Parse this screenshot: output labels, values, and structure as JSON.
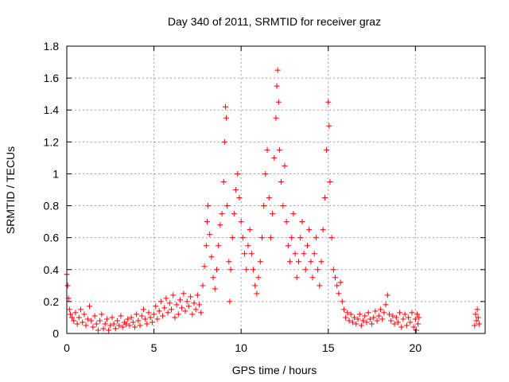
{
  "chart_data": {
    "type": "scatter",
    "title": "Day 340 of 2011, SRMTID for receiver graz",
    "xlabel": "GPS time / hours",
    "ylabel": "SRMTID / TECUs",
    "xlim": [
      0,
      24
    ],
    "ylim": [
      0,
      1.8
    ],
    "xticks": [
      0,
      5,
      10,
      15,
      20
    ],
    "xtick_labels": [
      "0",
      "5",
      "10",
      "15",
      "20"
    ],
    "yticks": [
      0,
      0.2,
      0.4,
      0.6,
      0.8,
      1,
      1.2,
      1.4,
      1.6,
      1.8
    ],
    "ytick_labels": [
      "0",
      "0.2",
      "0.4",
      "0.6",
      "0.8",
      "1",
      "1.2",
      "1.4",
      "1.6",
      "1.8"
    ],
    "grid": true,
    "marker": "+",
    "color": "#ff0000",
    "series": [
      {
        "name": "SRMTID",
        "points": [
          [
            0.0,
            0.37
          ],
          [
            0.05,
            0.3
          ],
          [
            0.1,
            0.22
          ],
          [
            0.15,
            0.15
          ],
          [
            0.2,
            0.12
          ],
          [
            0.3,
            0.1
          ],
          [
            0.4,
            0.08
          ],
          [
            0.5,
            0.13
          ],
          [
            0.6,
            0.06
          ],
          [
            0.7,
            0.1
          ],
          [
            0.8,
            0.15
          ],
          [
            0.9,
            0.07
          ],
          [
            1.0,
            0.12
          ],
          [
            1.1,
            0.05
          ],
          [
            1.2,
            0.09
          ],
          [
            1.3,
            0.17
          ],
          [
            1.4,
            0.08
          ],
          [
            1.5,
            0.04
          ],
          [
            1.6,
            0.11
          ],
          [
            1.7,
            0.06
          ],
          [
            1.8,
            0.02
          ],
          [
            1.9,
            0.08
          ],
          [
            2.0,
            0.12
          ],
          [
            2.1,
            0.03
          ],
          [
            2.2,
            0.06
          ],
          [
            2.3,
            0.09
          ],
          [
            2.4,
            0.02
          ],
          [
            2.5,
            0.05
          ],
          [
            2.6,
            0.1
          ],
          [
            2.7,
            0.06
          ],
          [
            2.8,
            0.03
          ],
          [
            2.9,
            0.08
          ],
          [
            3.0,
            0.05
          ],
          [
            3.1,
            0.11
          ],
          [
            3.2,
            0.04
          ],
          [
            3.3,
            0.07
          ],
          [
            3.4,
            0.06
          ],
          [
            3.5,
            0.09
          ],
          [
            3.6,
            0.05
          ],
          [
            3.7,
            0.1
          ],
          [
            3.8,
            0.07
          ],
          [
            3.9,
            0.04
          ],
          [
            4.0,
            0.12
          ],
          [
            4.1,
            0.08
          ],
          [
            4.2,
            0.05
          ],
          [
            4.3,
            0.11
          ],
          [
            4.4,
            0.15
          ],
          [
            4.5,
            0.09
          ],
          [
            4.6,
            0.06
          ],
          [
            4.7,
            0.13
          ],
          [
            4.8,
            0.1
          ],
          [
            4.9,
            0.07
          ],
          [
            5.0,
            0.12
          ],
          [
            5.1,
            0.17
          ],
          [
            5.2,
            0.09
          ],
          [
            5.3,
            0.14
          ],
          [
            5.4,
            0.2
          ],
          [
            5.5,
            0.11
          ],
          [
            5.6,
            0.16
          ],
          [
            5.7,
            0.22
          ],
          [
            5.8,
            0.13
          ],
          [
            5.9,
            0.19
          ],
          [
            6.0,
            0.15
          ],
          [
            6.1,
            0.24
          ],
          [
            6.2,
            0.1
          ],
          [
            6.3,
            0.18
          ],
          [
            6.4,
            0.12
          ],
          [
            6.5,
            0.21
          ],
          [
            6.6,
            0.16
          ],
          [
            6.7,
            0.25
          ],
          [
            6.8,
            0.14
          ],
          [
            6.9,
            0.2
          ],
          [
            7.0,
            0.17
          ],
          [
            7.1,
            0.23
          ],
          [
            7.2,
            0.12
          ],
          [
            7.3,
            0.19
          ],
          [
            7.4,
            0.15
          ],
          [
            7.5,
            0.24
          ],
          [
            7.6,
            0.18
          ],
          [
            7.7,
            0.13
          ],
          [
            7.8,
            0.3
          ],
          [
            7.9,
            0.42
          ],
          [
            8.0,
            0.55
          ],
          [
            8.05,
            0.7
          ],
          [
            8.1,
            0.8
          ],
          [
            8.2,
            0.62
          ],
          [
            8.3,
            0.48
          ],
          [
            8.4,
            0.35
          ],
          [
            8.5,
            0.28
          ],
          [
            8.6,
            0.4
          ],
          [
            8.7,
            0.55
          ],
          [
            8.8,
            0.68
          ],
          [
            8.9,
            0.75
          ],
          [
            9.0,
            0.95
          ],
          [
            9.05,
            1.2
          ],
          [
            9.1,
            1.42
          ],
          [
            9.15,
            1.35
          ],
          [
            9.2,
            0.8
          ],
          [
            9.3,
            0.45
          ],
          [
            9.35,
            0.2
          ],
          [
            9.4,
            0.4
          ],
          [
            9.5,
            0.6
          ],
          [
            9.6,
            0.75
          ],
          [
            9.7,
            0.9
          ],
          [
            9.8,
            1.0
          ],
          [
            9.9,
            0.85
          ],
          [
            10.0,
            0.7
          ],
          [
            10.1,
            0.6
          ],
          [
            10.2,
            0.5
          ],
          [
            10.3,
            0.4
          ],
          [
            10.4,
            0.55
          ],
          [
            10.5,
            0.65
          ],
          [
            10.6,
            0.5
          ],
          [
            10.7,
            0.4
          ],
          [
            10.8,
            0.3
          ],
          [
            10.9,
            0.25
          ],
          [
            11.0,
            0.35
          ],
          [
            11.1,
            0.45
          ],
          [
            11.2,
            0.6
          ],
          [
            11.3,
            0.8
          ],
          [
            11.4,
            1.0
          ],
          [
            11.5,
            1.15
          ],
          [
            11.6,
            0.85
          ],
          [
            11.7,
            0.6
          ],
          [
            11.8,
            0.75
          ],
          [
            11.9,
            1.1
          ],
          [
            12.0,
            1.35
          ],
          [
            12.05,
            1.55
          ],
          [
            12.1,
            1.65
          ],
          [
            12.15,
            1.45
          ],
          [
            12.2,
            1.15
          ],
          [
            12.3,
            0.95
          ],
          [
            12.4,
            0.8
          ],
          [
            12.5,
            1.05
          ],
          [
            12.6,
            0.7
          ],
          [
            12.7,
            0.55
          ],
          [
            12.8,
            0.45
          ],
          [
            12.9,
            0.6
          ],
          [
            13.0,
            0.75
          ],
          [
            13.1,
            0.5
          ],
          [
            13.2,
            0.35
          ],
          [
            13.3,
            0.45
          ],
          [
            13.4,
            0.6
          ],
          [
            13.5,
            0.7
          ],
          [
            13.6,
            0.5
          ],
          [
            13.7,
            0.4
          ],
          [
            13.8,
            0.55
          ],
          [
            13.9,
            0.65
          ],
          [
            14.0,
            0.45
          ],
          [
            14.1,
            0.35
          ],
          [
            14.2,
            0.5
          ],
          [
            14.3,
            0.6
          ],
          [
            14.4,
            0.4
          ],
          [
            14.5,
            0.3
          ],
          [
            14.6,
            0.45
          ],
          [
            14.7,
            0.65
          ],
          [
            14.8,
            0.85
          ],
          [
            14.9,
            1.15
          ],
          [
            15.0,
            1.45
          ],
          [
            15.05,
            1.3
          ],
          [
            15.1,
            0.95
          ],
          [
            15.2,
            0.6
          ],
          [
            15.3,
            0.4
          ],
          [
            15.4,
            0.35
          ],
          [
            15.5,
            0.3
          ],
          [
            15.6,
            0.25
          ],
          [
            15.7,
            0.32
          ],
          [
            15.8,
            0.2
          ],
          [
            15.9,
            0.15
          ],
          [
            16.0,
            0.1
          ],
          [
            16.1,
            0.13
          ],
          [
            16.2,
            0.08
          ],
          [
            16.3,
            0.12
          ],
          [
            16.4,
            0.07
          ],
          [
            16.5,
            0.1
          ],
          [
            16.6,
            0.06
          ],
          [
            16.7,
            0.09
          ],
          [
            16.8,
            0.12
          ],
          [
            16.9,
            0.05
          ],
          [
            17.0,
            0.08
          ],
          [
            17.1,
            0.11
          ],
          [
            17.2,
            0.07
          ],
          [
            17.3,
            0.13
          ],
          [
            17.4,
            0.09
          ],
          [
            17.5,
            0.06
          ],
          [
            17.6,
            0.1
          ],
          [
            17.7,
            0.14
          ],
          [
            17.8,
            0.08
          ],
          [
            17.9,
            0.11
          ],
          [
            18.0,
            0.15
          ],
          [
            18.1,
            0.09
          ],
          [
            18.2,
            0.13
          ],
          [
            18.3,
            0.18
          ],
          [
            18.4,
            0.24
          ],
          [
            18.5,
            0.12
          ],
          [
            18.6,
            0.08
          ],
          [
            18.7,
            0.11
          ],
          [
            18.8,
            0.06
          ],
          [
            18.9,
            0.1
          ],
          [
            19.0,
            0.07
          ],
          [
            19.1,
            0.13
          ],
          [
            19.2,
            0.04
          ],
          [
            19.3,
            0.09
          ],
          [
            19.4,
            0.12
          ],
          [
            19.5,
            0.05
          ],
          [
            19.6,
            0.1
          ],
          [
            19.7,
            0.07
          ],
          [
            19.8,
            0.13
          ],
          [
            19.9,
            0.04
          ],
          [
            20.0,
            0.09
          ],
          [
            20.05,
            0.02
          ],
          [
            20.1,
            0.12
          ],
          [
            20.15,
            0.06
          ],
          [
            20.2,
            0.1
          ],
          [
            23.4,
            0.05
          ],
          [
            23.45,
            0.12
          ],
          [
            23.5,
            0.08
          ],
          [
            23.55,
            0.15
          ],
          [
            23.6,
            0.1
          ],
          [
            23.65,
            0.06
          ]
        ]
      }
    ]
  }
}
